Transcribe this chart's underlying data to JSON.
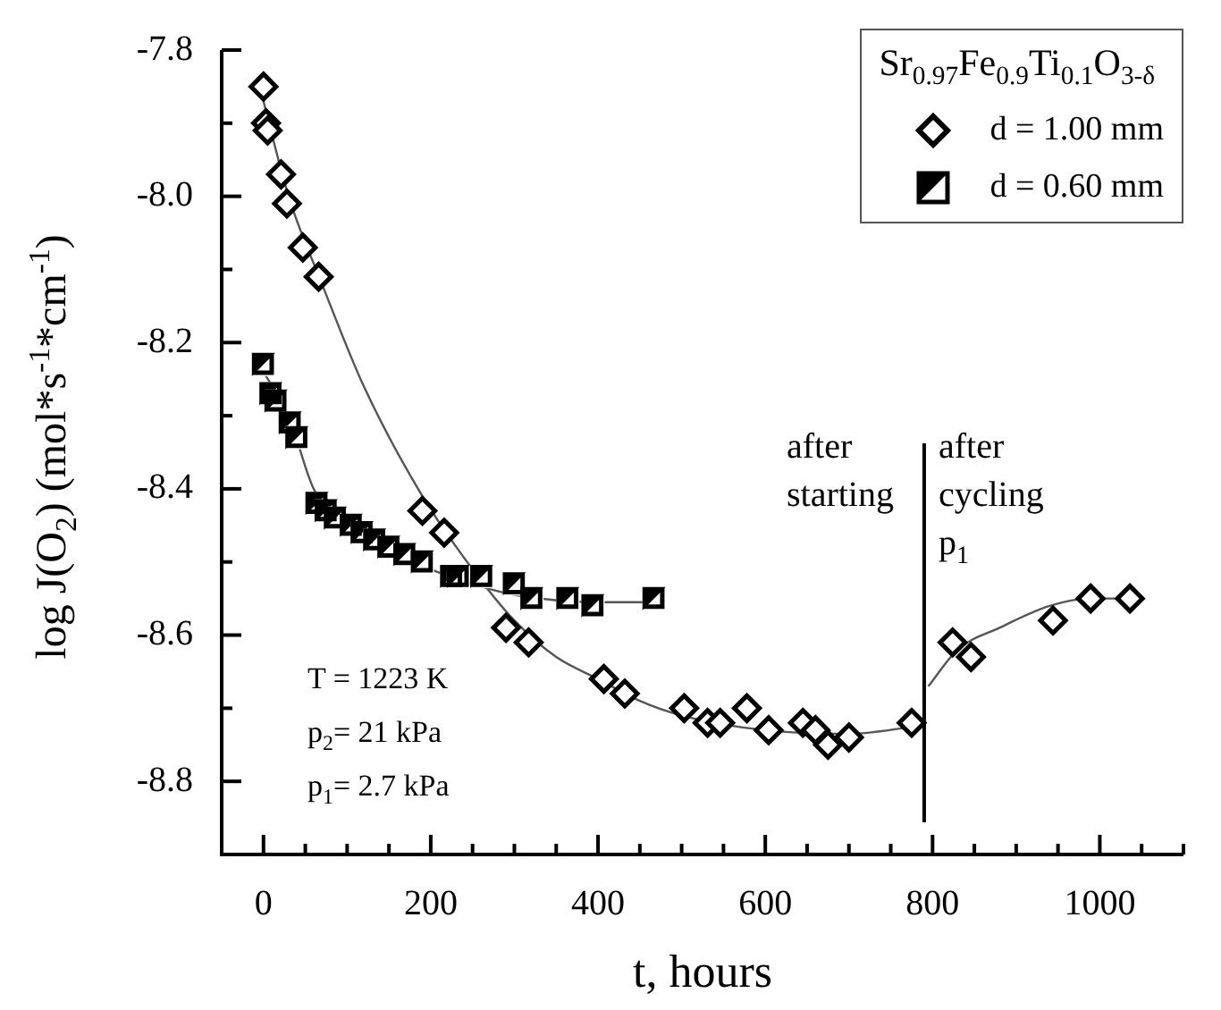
{
  "chart_data": {
    "type": "scatter",
    "xlabel": "t, hours",
    "ylabel": "log J(O$_{2}$)  (mol*s$^{-1}$*cm$^{-1}$)",
    "legend_title": "Sr$_{0.97}$Fe$_{0.9}$Ti$_{0.1}$O$_{3-δ}$",
    "legend": "top right",
    "grid": false,
    "xlim": [
      -50,
      1100
    ],
    "ylim": [
      -8.9,
      -7.8
    ],
    "xticks": [
      0,
      {
        "value": 50,
        "label": null
      },
      {
        "value": 100,
        "label": null
      },
      {
        "value": 150,
        "label": null
      },
      200,
      {
        "value": 250,
        "label": null
      },
      {
        "value": 300,
        "label": null
      },
      {
        "value": 350,
        "label": null
      },
      400,
      {
        "value": 450,
        "label": null
      },
      {
        "value": 500,
        "label": null
      },
      {
        "value": 550,
        "label": null
      },
      600,
      {
        "value": 650,
        "label": null
      },
      {
        "value": 700,
        "label": null
      },
      {
        "value": 750,
        "label": null
      },
      800,
      {
        "value": 850,
        "label": null
      },
      {
        "value": 900,
        "label": null
      },
      {
        "value": 950,
        "label": null
      },
      1000,
      {
        "value": 1050,
        "label": null
      },
      {
        "value": 1100,
        "label": null
      }
    ],
    "yticks": [
      {
        "value": -7.8,
        "label": "-7.8"
      },
      {
        "value": -7.9,
        "label": null
      },
      {
        "value": -8.0,
        "label": "-8.0"
      },
      {
        "value": -8.1,
        "label": null
      },
      {
        "value": -8.2,
        "label": "-8.2"
      },
      {
        "value": -8.3,
        "label": null
      },
      {
        "value": -8.4,
        "label": "-8.4"
      },
      {
        "value": -8.5,
        "label": null
      },
      {
        "value": -8.6,
        "label": "-8.6"
      },
      {
        "value": -8.7,
        "label": null
      },
      {
        "value": -8.8,
        "label": "-8.8"
      }
    ],
    "series": [
      {
        "name": "d = 1.00 mm",
        "marker": "diamond",
        "color": "#000000",
        "x": [
          0,
          3,
          5,
          21,
          28,
          47,
          66,
          190,
          216,
          290,
          317,
          407,
          432,
          503,
          531,
          546,
          578,
          604,
          645,
          660,
          675,
          700,
          775,
          824,
          846,
          944,
          989,
          1036
        ],
        "values": [
          -7.85,
          -7.9,
          -7.91,
          -7.97,
          -8.01,
          -8.07,
          -8.11,
          -8.43,
          -8.46,
          -8.59,
          -8.61,
          -8.66,
          -8.68,
          -8.7,
          -8.72,
          -8.72,
          -8.7,
          -8.73,
          -8.72,
          -8.73,
          -8.75,
          -8.74,
          -8.72,
          -8.61,
          -8.63,
          -8.58,
          -8.55,
          -8.55
        ]
      },
      {
        "name": "d = 0.60 mm",
        "color": "#000000",
        "x": [
          0,
          9,
          15,
          32,
          40,
          64,
          75,
          86,
          105,
          118,
          133,
          150,
          169,
          190,
          225,
          233,
          261,
          300,
          321,
          364,
          394,
          467
        ],
        "values": [
          -8.23,
          -8.27,
          -8.28,
          -8.31,
          -8.33,
          -8.42,
          -8.43,
          -8.44,
          -8.45,
          -8.46,
          -8.47,
          -8.48,
          -8.49,
          -8.5,
          -8.52,
          -8.52,
          -8.52,
          -8.53,
          -8.55,
          -8.55,
          -8.56,
          -8.55
        ]
      },
      {
        "type": "line",
        "marker": "none",
        "color": "#555555",
        "x": [
          0,
          30,
          70,
          120,
          190,
          250,
          300,
          350,
          400,
          450,
          500,
          600,
          700,
          780
        ],
        "values": [
          -7.87,
          -8.0,
          -8.12,
          -8.26,
          -8.41,
          -8.51,
          -8.58,
          -8.63,
          -8.66,
          -8.69,
          -8.71,
          -8.73,
          -8.735,
          -8.725
        ]
      },
      {
        "type": "line",
        "marker": "none",
        "color": "#555555",
        "x": [
          795,
          830,
          880,
          940,
          990,
          1040
        ],
        "values": [
          -8.67,
          -8.62,
          -8.59,
          -8.56,
          -8.55,
          -8.55
        ]
      },
      {
        "type": "line",
        "marker": "none",
        "color": "#555555",
        "x": [
          0,
          30,
          60,
          100,
          150,
          200,
          250,
          300,
          400,
          470
        ],
        "values": [
          -8.24,
          -8.3,
          -8.4,
          -8.45,
          -8.48,
          -8.51,
          -8.53,
          -8.545,
          -8.555,
          -8.555
        ]
      }
    ],
    "ref_lines": [
      {
        "axis": "x",
        "value": 790,
        "color": "#000000"
      }
    ],
    "annotations": [
      "T = 1223 K",
      "p$_{2}$= 21 kPa",
      "p$_{1}$= 2.7 kPa",
      "after\nstarting",
      "after\ncycling\np$_{1}$"
    ]
  }
}
